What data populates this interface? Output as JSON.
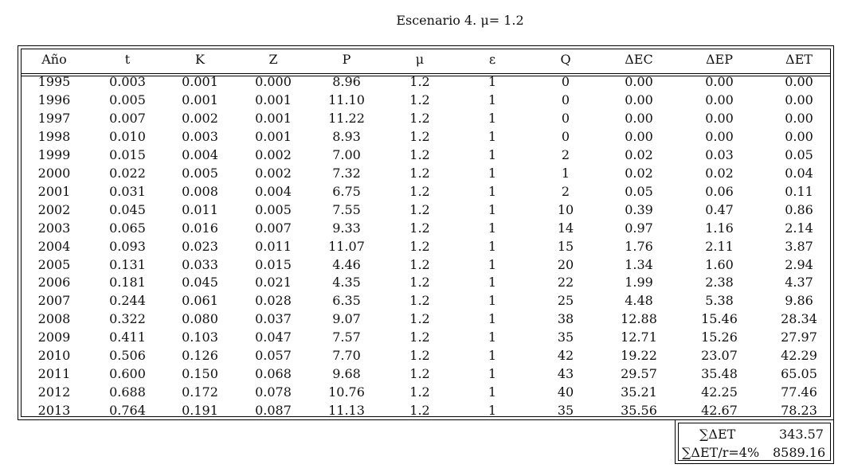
{
  "title": "Escenario 4. μ= 1.2",
  "headers": [
    "Año",
    "t",
    "K",
    "Z",
    "P",
    "μ",
    "ε",
    "Q",
    "ΔEC",
    "ΔEP",
    "ΔET"
  ],
  "rows": [
    [
      "1995",
      "0.003",
      "0.001",
      "0.000",
      "8.96",
      "1.2",
      "1",
      "0",
      "0.00",
      "0.00",
      "0.00"
    ],
    [
      "1996",
      "0.005",
      "0.001",
      "0.001",
      "11.10",
      "1.2",
      "1",
      "0",
      "0.00",
      "0.00",
      "0.00"
    ],
    [
      "1997",
      "0.007",
      "0.002",
      "0.001",
      "11.22",
      "1.2",
      "1",
      "0",
      "0.00",
      "0.00",
      "0.00"
    ],
    [
      "1998",
      "0.010",
      "0.003",
      "0.001",
      "8.93",
      "1.2",
      "1",
      "0",
      "0.00",
      "0.00",
      "0.00"
    ],
    [
      "1999",
      "0.015",
      "0.004",
      "0.002",
      "7.00",
      "1.2",
      "1",
      "2",
      "0.02",
      "0.03",
      "0.05"
    ],
    [
      "2000",
      "0.022",
      "0.005",
      "0.002",
      "7.32",
      "1.2",
      "1",
      "1",
      "0.02",
      "0.02",
      "0.04"
    ],
    [
      "2001",
      "0.031",
      "0.008",
      "0.004",
      "6.75",
      "1.2",
      "1",
      "2",
      "0.05",
      "0.06",
      "0.11"
    ],
    [
      "2002",
      "0.045",
      "0.011",
      "0.005",
      "7.55",
      "1.2",
      "1",
      "10",
      "0.39",
      "0.47",
      "0.86"
    ],
    [
      "2003",
      "0.065",
      "0.016",
      "0.007",
      "9.33",
      "1.2",
      "1",
      "14",
      "0.97",
      "1.16",
      "2.14"
    ],
    [
      "2004",
      "0.093",
      "0.023",
      "0.011",
      "11.07",
      "1.2",
      "1",
      "15",
      "1.76",
      "2.11",
      "3.87"
    ],
    [
      "2005",
      "0.131",
      "0.033",
      "0.015",
      "4.46",
      "1.2",
      "1",
      "20",
      "1.34",
      "1.60",
      "2.94"
    ],
    [
      "2006",
      "0.181",
      "0.045",
      "0.021",
      "4.35",
      "1.2",
      "1",
      "22",
      "1.99",
      "2.38",
      "4.37"
    ],
    [
      "2007",
      "0.244",
      "0.061",
      "0.028",
      "6.35",
      "1.2",
      "1",
      "25",
      "4.48",
      "5.38",
      "9.86"
    ],
    [
      "2008",
      "0.322",
      "0.080",
      "0.037",
      "9.07",
      "1.2",
      "1",
      "38",
      "12.88",
      "15.46",
      "28.34"
    ],
    [
      "2009",
      "0.411",
      "0.103",
      "0.047",
      "7.57",
      "1.2",
      "1",
      "35",
      "12.71",
      "15.26",
      "27.97"
    ],
    [
      "2010",
      "0.506",
      "0.126",
      "0.057",
      "7.70",
      "1.2",
      "1",
      "42",
      "19.22",
      "23.07",
      "42.29"
    ],
    [
      "2011",
      "0.600",
      "0.150",
      "0.068",
      "9.68",
      "1.2",
      "1",
      "43",
      "29.57",
      "35.48",
      "65.05"
    ],
    [
      "2012",
      "0.688",
      "0.172",
      "0.078",
      "10.76",
      "1.2",
      "1",
      "40",
      "35.21",
      "42.25",
      "77.46"
    ],
    [
      "2013",
      "0.764",
      "0.191",
      "0.087",
      "11.13",
      "1.2",
      "1",
      "35",
      "35.56",
      "42.67",
      "78.23"
    ]
  ],
  "summary": [
    {
      "label": "∑ΔET",
      "value": "343.57"
    },
    {
      "label": "∑ΔET/r=4%",
      "value": "8589.16"
    }
  ]
}
